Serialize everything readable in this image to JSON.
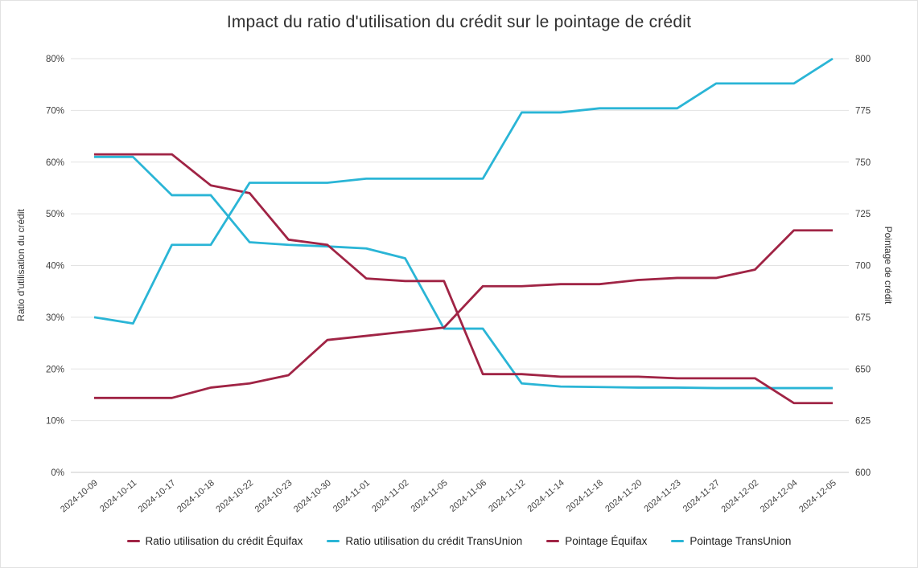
{
  "chart_data": {
    "type": "line",
    "title": "Impact du ratio d'utilisation du crédit sur le pointage de crédit",
    "x_labels": [
      "2024-10-09",
      "2024-10-11",
      "2024-10-17",
      "2024-10-18",
      "2024-10-22",
      "2024-10-23",
      "2024-10-30",
      "2024-11-01",
      "2024-11-02",
      "2024-11-05",
      "2024-11-06",
      "2024-11-12",
      "2024-11-14",
      "2024-11-18",
      "2024-11-20",
      "2024-11-23",
      "2024-11-27",
      "2024-12-02",
      "2024-12-04",
      "2024-12-05"
    ],
    "y_left": {
      "label": "Ratio d'utilisation du crédit",
      "min": 0,
      "max": 80,
      "step": 10,
      "ticks": [
        "0%",
        "10%",
        "20%",
        "30%",
        "40%",
        "50%",
        "60%",
        "70%",
        "80%"
      ]
    },
    "y_right": {
      "label": "Pointage de crédit",
      "min": 600,
      "max": 800,
      "step": 25,
      "ticks": [
        "600",
        "625",
        "650",
        "675",
        "700",
        "725",
        "750",
        "775",
        "800"
      ]
    },
    "grid": true,
    "legend_position": "bottom",
    "series": [
      {
        "name": "Ratio utilisation du crédit Équifax",
        "axis": "left",
        "color": "#a02445",
        "values": [
          61.5,
          61.5,
          61.5,
          55.5,
          54,
          45,
          44,
          37.5,
          37,
          37,
          19,
          19,
          18.5,
          18.5,
          18.5,
          18.2,
          18.2,
          18.2,
          13.4,
          13.4
        ]
      },
      {
        "name": "Ratio utilisation du crédit TransUnion",
        "axis": "left",
        "color": "#2ab5d6",
        "values": [
          61,
          61,
          53.6,
          53.6,
          44.5,
          44,
          43.7,
          43.3,
          41.4,
          27.8,
          27.8,
          17.2,
          16.6,
          16.5,
          16.4,
          16.4,
          16.3,
          16.3,
          16.3,
          16.3
        ]
      },
      {
        "name": "Pointage Équifax",
        "axis": "right",
        "color": "#a02445",
        "values": [
          636,
          636,
          636,
          641,
          643,
          647,
          664,
          666,
          668,
          670,
          690,
          690,
          691,
          691,
          693,
          694,
          694,
          698,
          717,
          717
        ]
      },
      {
        "name": "Pointage TransUnion",
        "axis": "right",
        "color": "#2ab5d6",
        "values": [
          675,
          672,
          710,
          710,
          740,
          740,
          740,
          742,
          742,
          742,
          742,
          774,
          774,
          776,
          776,
          776,
          788,
          788,
          788,
          800
        ]
      }
    ]
  }
}
